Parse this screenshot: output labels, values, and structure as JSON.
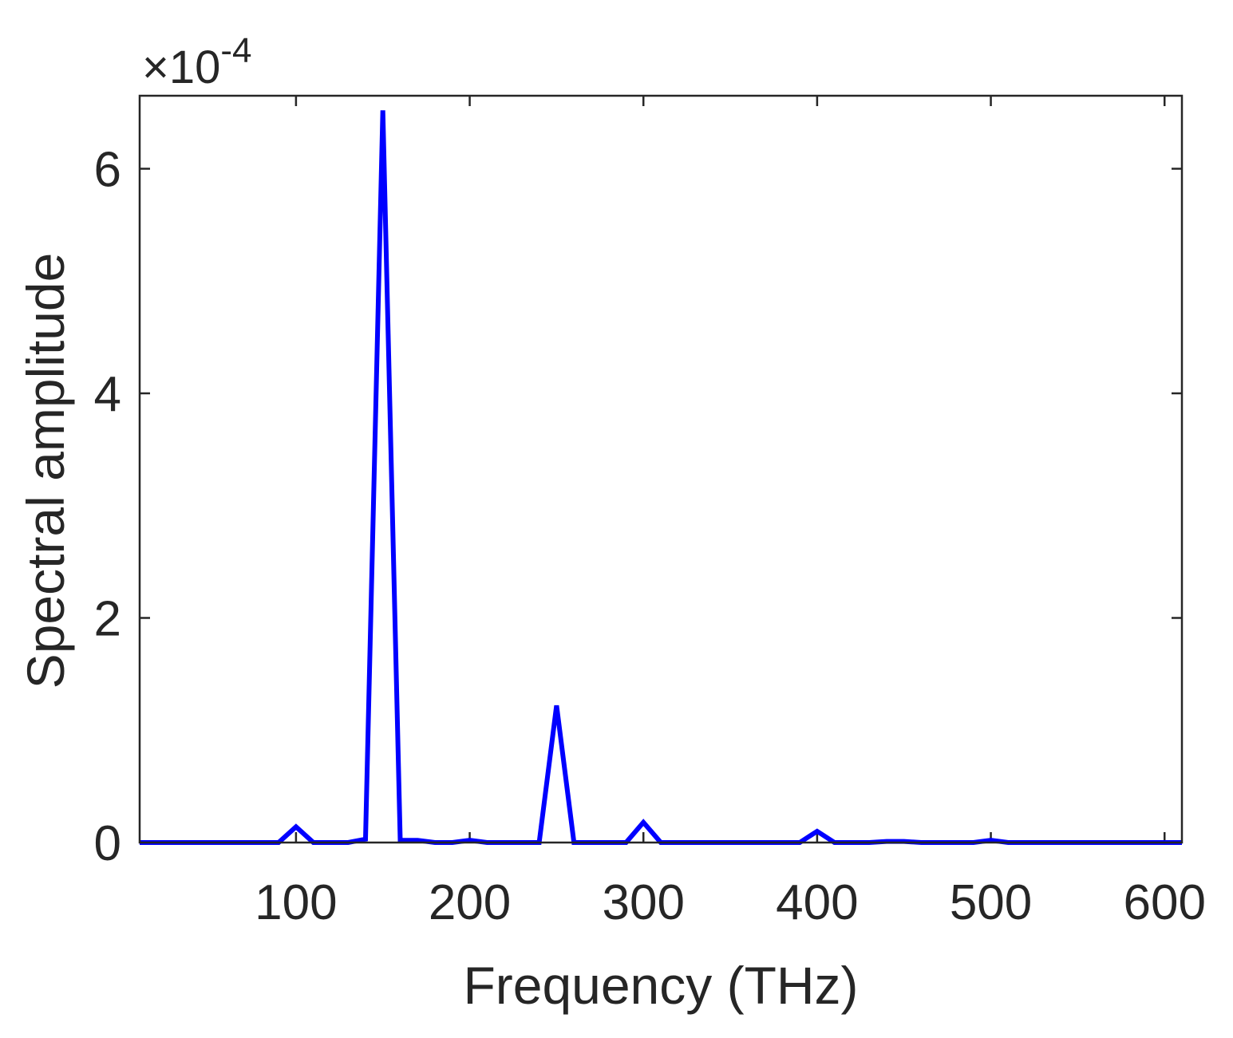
{
  "chart_data": {
    "type": "line",
    "title": "",
    "xlabel": "Frequency (THz)",
    "ylabel": "Spectral amplitude",
    "xlim": [
      10,
      610
    ],
    "ylim": [
      0,
      6.65
    ],
    "x_ticks": [
      100,
      200,
      300,
      400,
      500,
      600
    ],
    "x_tick_labels": [
      "100",
      "200",
      "300",
      "400",
      "500",
      "600"
    ],
    "y_ticks": [
      0,
      2,
      4,
      6
    ],
    "y_tick_labels": [
      "0",
      "2",
      "4",
      "6"
    ],
    "y_exponent": {
      "prefix": "×10",
      "power": "-4"
    },
    "grid": false,
    "legend": "none",
    "line_color": "#0000ff",
    "series": [
      {
        "x": [
          10,
          20,
          30,
          40,
          50,
          60,
          70,
          80,
          90,
          100,
          110,
          120,
          130,
          140,
          150,
          160,
          170,
          180,
          190,
          200,
          210,
          220,
          230,
          240,
          250,
          260,
          270,
          280,
          290,
          300,
          310,
          320,
          330,
          340,
          350,
          360,
          370,
          380,
          390,
          400,
          410,
          420,
          430,
          440,
          450,
          460,
          470,
          480,
          490,
          500,
          510,
          520,
          530,
          540,
          550,
          560,
          570,
          580,
          590,
          600,
          610
        ],
        "values": [
          0,
          0,
          0,
          0,
          0,
          0,
          0,
          0,
          0,
          0.14,
          0,
          0,
          0,
          0.03,
          6.52,
          0.02,
          0.02,
          0,
          0,
          0.02,
          0,
          0,
          0,
          0,
          1.22,
          0,
          0,
          0,
          0,
          0.18,
          0,
          0,
          0,
          0,
          0,
          0,
          0,
          0,
          0,
          0.1,
          0,
          0,
          0,
          0.01,
          0.01,
          0,
          0,
          0,
          0,
          0.02,
          0,
          0,
          0,
          0,
          0,
          0,
          0,
          0,
          0,
          0,
          0
        ]
      }
    ]
  }
}
